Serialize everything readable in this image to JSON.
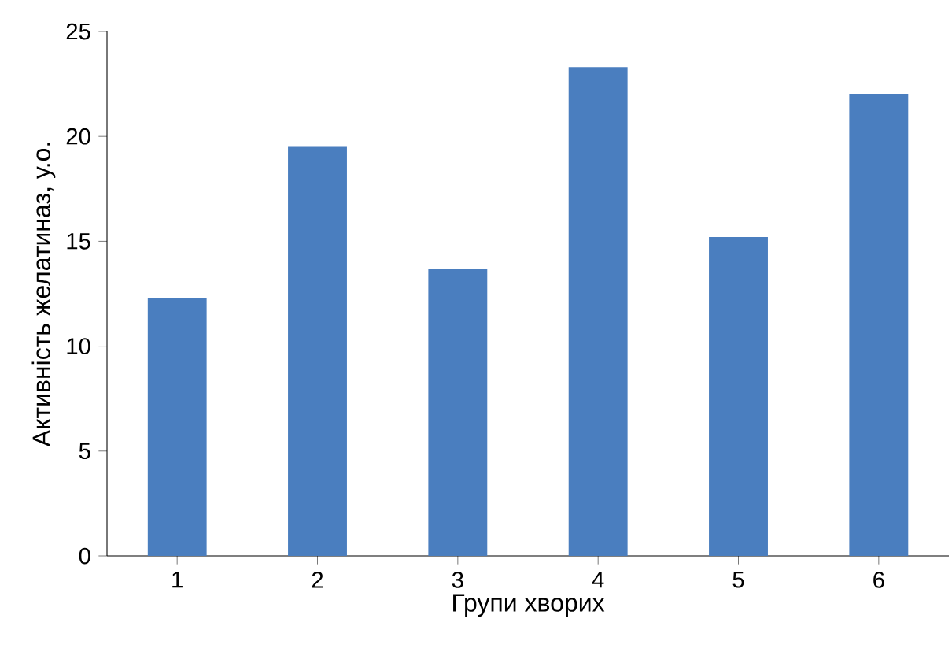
{
  "chart_data": {
    "type": "bar",
    "xlabel": "Групи хворих",
    "ylabel": "Активність желатиназ, у.о.",
    "categories": [
      "1",
      "2",
      "3",
      "4",
      "5",
      "6"
    ],
    "values": [
      12.3,
      19.5,
      13.7,
      23.3,
      15.2,
      22.0
    ],
    "color": "#4a7ebf",
    "ylim": [
      0,
      25
    ],
    "yticks": [
      0,
      5,
      10,
      15,
      20,
      25
    ]
  }
}
